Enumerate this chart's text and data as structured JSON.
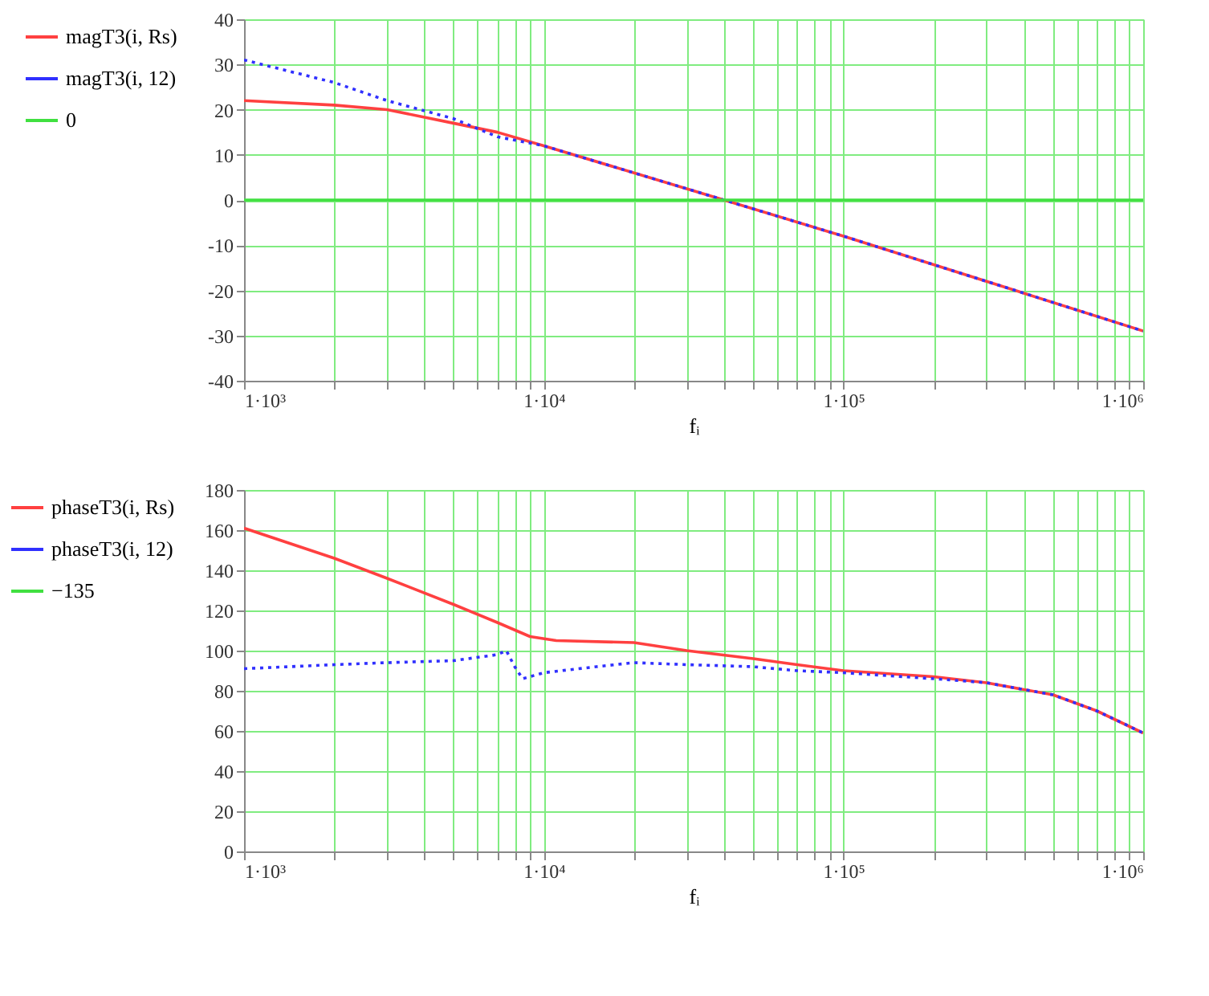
{
  "chart_data": [
    {
      "type": "line",
      "xlabel": "fᵢ",
      "log": "x",
      "grid": true,
      "legend": "left",
      "marker": "none",
      "x": [
        1000,
        2000,
        3000,
        5000,
        7000,
        10000,
        30000,
        100000,
        300000,
        1000000
      ],
      "xlim": [
        1000,
        1000000
      ],
      "xticks": [
        {
          "value": 1000,
          "label": "1·10³"
        },
        {
          "value": 2000,
          "label": null
        },
        {
          "value": 3000,
          "label": null
        },
        {
          "value": 4000,
          "label": null
        },
        {
          "value": 5000,
          "label": null
        },
        {
          "value": 6000,
          "label": null
        },
        {
          "value": 7000,
          "label": null
        },
        {
          "value": 8000,
          "label": null
        },
        {
          "value": 9000,
          "label": null
        },
        {
          "value": 10000,
          "label": "1·10⁴"
        },
        {
          "value": 20000,
          "label": null
        },
        {
          "value": 30000,
          "label": null
        },
        {
          "value": 40000,
          "label": null
        },
        {
          "value": 50000,
          "label": null
        },
        {
          "value": 60000,
          "label": null
        },
        {
          "value": 70000,
          "label": null
        },
        {
          "value": 80000,
          "label": null
        },
        {
          "value": 90000,
          "label": null
        },
        {
          "value": 100000,
          "label": "1·10⁵"
        },
        {
          "value": 200000,
          "label": null
        },
        {
          "value": 300000,
          "label": null
        },
        {
          "value": 400000,
          "label": null
        },
        {
          "value": 500000,
          "label": null
        },
        {
          "value": 600000,
          "label": null
        },
        {
          "value": 700000,
          "label": null
        },
        {
          "value": 800000,
          "label": null
        },
        {
          "value": 900000,
          "label": null
        },
        {
          "value": 1000000,
          "label": "1·10⁶"
        }
      ],
      "ylim": [
        -40,
        40
      ],
      "yticks": [
        -40,
        -30,
        -20,
        -10,
        0,
        10,
        20,
        30,
        40
      ],
      "series": [
        {
          "name": "magT3(i, Rs)",
          "color": "#ff4040",
          "line_style": "solid",
          "values": [
            22,
            21,
            20,
            17,
            15,
            12,
            2.5,
            -8,
            -18,
            -29
          ]
        },
        {
          "name": "magT3(i, 12)",
          "color": "#3030ff",
          "line_style": "dotted",
          "values": [
            31,
            26,
            22,
            18,
            14,
            12,
            2.5,
            -8,
            -18,
            -29
          ]
        },
        {
          "name": "0",
          "color": "#40e040",
          "line_style": "solid",
          "x": [
            1000,
            1000000
          ],
          "values": [
            0,
            0
          ]
        }
      ]
    },
    {
      "type": "line",
      "xlabel": "fᵢ",
      "log": "x",
      "grid": true,
      "legend": "left",
      "marker": "none",
      "xlim": [
        1000,
        1000000
      ],
      "xticks": [
        {
          "value": 1000,
          "label": "1·10³"
        },
        {
          "value": 2000,
          "label": null
        },
        {
          "value": 3000,
          "label": null
        },
        {
          "value": 4000,
          "label": null
        },
        {
          "value": 5000,
          "label": null
        },
        {
          "value": 6000,
          "label": null
        },
        {
          "value": 7000,
          "label": null
        },
        {
          "value": 8000,
          "label": null
        },
        {
          "value": 9000,
          "label": null
        },
        {
          "value": 10000,
          "label": "1·10⁴"
        },
        {
          "value": 20000,
          "label": null
        },
        {
          "value": 30000,
          "label": null
        },
        {
          "value": 40000,
          "label": null
        },
        {
          "value": 50000,
          "label": null
        },
        {
          "value": 60000,
          "label": null
        },
        {
          "value": 70000,
          "label": null
        },
        {
          "value": 80000,
          "label": null
        },
        {
          "value": 90000,
          "label": null
        },
        {
          "value": 100000,
          "label": "1·10⁵"
        },
        {
          "value": 200000,
          "label": null
        },
        {
          "value": 300000,
          "label": null
        },
        {
          "value": 400000,
          "label": null
        },
        {
          "value": 500000,
          "label": null
        },
        {
          "value": 600000,
          "label": null
        },
        {
          "value": 700000,
          "label": null
        },
        {
          "value": 800000,
          "label": null
        },
        {
          "value": 900000,
          "label": null
        },
        {
          "value": 1000000,
          "label": "1·10⁶"
        }
      ],
      "ylim": [
        0,
        180
      ],
      "yticks": [
        0,
        20,
        40,
        60,
        80,
        100,
        120,
        140,
        160,
        180
      ],
      "series": [
        {
          "name": "phaseT3(i, Rs)",
          "color": "#ff4040",
          "line_style": "solid",
          "x": [
            1000,
            2000,
            3000,
            5000,
            7000,
            9000,
            11000,
            20000,
            30000,
            50000,
            70000,
            100000,
            200000,
            300000,
            500000,
            700000,
            1000000
          ],
          "values": [
            161,
            146,
            136,
            123,
            114,
            107,
            105,
            104,
            100,
            96,
            93,
            90,
            87,
            84,
            78,
            70,
            59
          ]
        },
        {
          "name": "phaseT3(i, 12)",
          "color": "#3030ff",
          "line_style": "dotted",
          "x": [
            1000,
            2000,
            3000,
            5000,
            7000,
            7500,
            8000,
            8500,
            10000,
            15000,
            20000,
            30000,
            50000,
            70000,
            100000,
            200000,
            300000,
            500000,
            700000,
            1000000
          ],
          "values": [
            91,
            93,
            94,
            95,
            98,
            100,
            92,
            86,
            89,
            92,
            94,
            93,
            92,
            90,
            89,
            86,
            84,
            78,
            70,
            59
          ]
        },
        {
          "name": "−135",
          "color": "#40e040",
          "line_style": "solid"
        }
      ]
    }
  ]
}
